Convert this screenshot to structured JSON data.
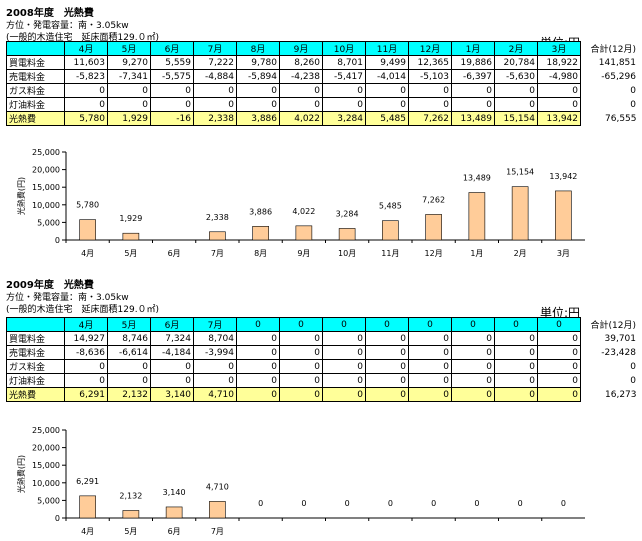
{
  "unit_label": "単位:円",
  "total_header": "合計(12月)",
  "row_labels": [
    "買電料金",
    "売電料金",
    "ガス料金",
    "灯油料金",
    "光熱費"
  ],
  "sections": [
    {
      "title": "2008年度　光熱費",
      "sub1": "方位・発電容量：南・3.05kw",
      "sub2": "(一般的木造住宅　延床面積129.０㎡)",
      "months": [
        "4月",
        "5月",
        "6月",
        "7月",
        "8月",
        "9月",
        "10月",
        "11月",
        "12月",
        "1月",
        "2月",
        "3月"
      ],
      "rows": [
        {
          "label": "買電料金",
          "values": [
            "11,603",
            "9,270",
            "5,559",
            "7,222",
            "9,780",
            "8,260",
            "8,701",
            "9,499",
            "12,365",
            "19,886",
            "20,784",
            "18,922"
          ],
          "total": "141,851"
        },
        {
          "label": "売電料金",
          "values": [
            "-5,823",
            "-7,341",
            "-5,575",
            "-4,884",
            "-5,894",
            "-4,238",
            "-5,417",
            "-4,014",
            "-5,103",
            "-6,397",
            "-5,630",
            "-4,980"
          ],
          "total": "-65,296"
        },
        {
          "label": "ガス料金",
          "values": [
            "0",
            "0",
            "0",
            "0",
            "0",
            "0",
            "0",
            "0",
            "0",
            "0",
            "0",
            "0"
          ],
          "total": "0"
        },
        {
          "label": "灯油料金",
          "values": [
            "0",
            "0",
            "0",
            "0",
            "0",
            "0",
            "0",
            "0",
            "0",
            "0",
            "0",
            "0"
          ],
          "total": "0"
        },
        {
          "label": "光熱費",
          "values": [
            "5,780",
            "1,929",
            "-16",
            "2,338",
            "3,886",
            "4,022",
            "3,284",
            "5,485",
            "7,262",
            "13,489",
            "15,154",
            "13,942"
          ],
          "total": "76,555"
        }
      ]
    },
    {
      "title": "2009年度　光熱費",
      "sub1": "方位・発電容量：南・3.05kw",
      "sub2": "(一般的木造住宅　延床面積129.０㎡)",
      "months": [
        "4月",
        "5月",
        "6月",
        "7月",
        "0",
        "0",
        "0",
        "0",
        "0",
        "0",
        "0",
        "0"
      ],
      "rows": [
        {
          "label": "買電料金",
          "values": [
            "14,927",
            "8,746",
            "7,324",
            "8,704",
            "0",
            "0",
            "0",
            "0",
            "0",
            "0",
            "0",
            "0"
          ],
          "total": "39,701"
        },
        {
          "label": "売電料金",
          "values": [
            "-8,636",
            "-6,614",
            "-4,184",
            "-3,994",
            "0",
            "0",
            "0",
            "0",
            "0",
            "0",
            "0",
            "0"
          ],
          "total": "-23,428"
        },
        {
          "label": "ガス料金",
          "values": [
            "0",
            "0",
            "0",
            "0",
            "0",
            "0",
            "0",
            "0",
            "0",
            "0",
            "0",
            "0"
          ],
          "total": "0"
        },
        {
          "label": "灯油料金",
          "values": [
            "0",
            "0",
            "0",
            "0",
            "0",
            "0",
            "0",
            "0",
            "0",
            "0",
            "0",
            "0"
          ],
          "total": "0"
        },
        {
          "label": "光熱費",
          "values": [
            "6,291",
            "2,132",
            "3,140",
            "4,710",
            "0",
            "0",
            "0",
            "0",
            "0",
            "0",
            "0",
            "0"
          ],
          "total": "16,273"
        }
      ]
    }
  ],
  "chart_data": [
    {
      "type": "bar",
      "title": "2008年度　光熱費",
      "ylabel": "光熱費(円)",
      "xlabel": "",
      "categories": [
        "4月",
        "5月",
        "6月",
        "7月",
        "8月",
        "9月",
        "10月",
        "11月",
        "12月",
        "1月",
        "2月",
        "3月"
      ],
      "values": [
        5780,
        1929,
        -16,
        2338,
        3886,
        4022,
        3284,
        5485,
        7262,
        13489,
        15154,
        13942
      ],
      "data_labels": [
        "5,780",
        "1,929",
        "",
        "2,338",
        "3,886",
        "4,022",
        "3,284",
        "5,485",
        "7,262",
        "13,489",
        "15,154",
        "13,942"
      ],
      "ylim": [
        0,
        25000
      ],
      "yticks": [
        "0",
        "5,000",
        "10,000",
        "15,000",
        "20,000",
        "25,000"
      ],
      "bar_color": "#ffcc99"
    },
    {
      "type": "bar",
      "title": "2009年度　光熱費",
      "ylabel": "光熱費(円)",
      "xlabel": "",
      "categories": [
        "4月",
        "5月",
        "6月",
        "7月",
        "",
        "",
        "",
        "",
        "",
        "",
        "",
        ""
      ],
      "values": [
        6291,
        2132,
        3140,
        4710,
        0,
        0,
        0,
        0,
        0,
        0,
        0,
        0
      ],
      "data_labels": [
        "6,291",
        "2,132",
        "3,140",
        "4,710",
        "0",
        "0",
        "0",
        "0",
        "0",
        "0",
        "0",
        "0"
      ],
      "ylim": [
        0,
        25000
      ],
      "yticks": [
        "0",
        "5,000",
        "10,000",
        "15,000",
        "20,000",
        "25,000"
      ],
      "bar_color": "#ffcc99"
    }
  ]
}
